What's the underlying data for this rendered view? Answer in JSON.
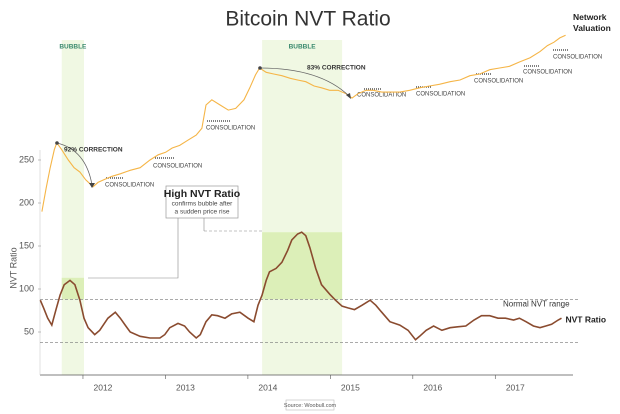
{
  "chart_data": {
    "type": "line",
    "title": "Bitcoin NVT Ratio",
    "y_label": "NVT Ratio",
    "xlim": [
      2011.2,
      2017.7
    ],
    "xticks": [
      2012,
      2013,
      2014,
      2015,
      2016,
      2017
    ],
    "ylim": [
      0,
      400
    ],
    "yticks": [
      50,
      100,
      150,
      200,
      250
    ],
    "normal_range": [
      38,
      88
    ],
    "normal_range_label": "Normal NVT range",
    "bubbles": [
      {
        "label": "BUBBLE",
        "x": [
          2011.5,
          2011.77
        ],
        "y": [
          88,
          113
        ]
      },
      {
        "label": "BUBBLE",
        "x": [
          2013.93,
          2014.9
        ],
        "y": [
          88,
          166
        ]
      }
    ],
    "corrections": [
      "92% CORRECTION",
      "83% CORRECTION"
    ],
    "consolidations": [
      "CONSOLIDATION",
      "CONSOLIDATION",
      "CONSOLIDATION",
      "CONSOLIDATION",
      "CONSOLIDATION",
      "CONSOLIDATION",
      "CONSOLIDATION",
      "CONSOLIDATION"
    ],
    "callout": {
      "title": "High NVT Ratio",
      "lines": [
        "confirms bubble after",
        "a sudden price rise"
      ]
    },
    "source": "Source: Woobull.com",
    "series": [
      {
        "name": "NVT Ratio",
        "color": "#8a4b2f",
        "x": [
          2011.24,
          2011.28,
          2011.33,
          2011.38,
          2011.43,
          2011.48,
          2011.53,
          2011.6,
          2011.66,
          2011.72,
          2011.77,
          2011.82,
          2011.9,
          2011.96,
          2012.06,
          2012.15,
          2012.21,
          2012.27,
          2012.33,
          2012.45,
          2012.57,
          2012.69,
          2012.75,
          2012.81,
          2012.91,
          2012.99,
          2013.05,
          2013.13,
          2013.18,
          2013.25,
          2013.32,
          2013.39,
          2013.48,
          2013.56,
          2013.66,
          2013.76,
          2013.83,
          2013.88,
          2013.93,
          2013.98,
          2014.02,
          2014.1,
          2014.17,
          2014.24,
          2014.29,
          2014.36,
          2014.41,
          2014.46,
          2014.51,
          2014.58,
          2014.65,
          2014.75,
          2014.82,
          2014.9,
          2014.97,
          2015.05,
          2015.14,
          2015.24,
          2015.31,
          2015.38,
          2015.48,
          2015.6,
          2015.7,
          2015.79,
          2015.84,
          2015.92,
          2016.01,
          2016.11,
          2016.21,
          2016.3,
          2016.4,
          2016.5,
          2016.59,
          2016.69,
          2016.79,
          2016.88,
          2016.98,
          2017.05,
          2017.13,
          2017.22,
          2017.3,
          2017.37,
          2017.44,
          2017.52,
          2017.56
        ],
        "values": [
          87,
          78,
          66,
          58,
          76,
          93,
          105,
          110,
          105,
          87,
          66,
          55,
          47,
          52,
          66,
          73,
          66,
          58,
          50,
          45,
          43,
          43,
          47,
          55,
          60,
          57,
          50,
          43,
          47,
          62,
          70,
          69,
          66,
          71,
          73,
          66,
          62,
          81,
          93,
          110,
          120,
          124,
          131,
          145,
          157,
          164,
          166,
          162,
          148,
          124,
          105,
          94,
          87,
          80,
          78,
          76,
          81,
          87,
          81,
          73,
          62,
          58,
          52,
          41,
          45,
          52,
          57,
          52,
          55,
          56,
          57,
          64,
          69,
          69,
          66,
          66,
          64,
          66,
          62,
          57,
          55,
          57,
          59,
          64,
          66
        ]
      },
      {
        "name": "Network Valuation",
        "color": "#f5b547",
        "x": [
          2011.26,
          2011.31,
          2011.36,
          2011.41,
          2011.44,
          2011.5,
          2011.58,
          2011.65,
          2011.72,
          2011.79,
          2011.88,
          2011.94,
          2012.01,
          2012.11,
          2012.21,
          2012.33,
          2012.45,
          2012.57,
          2012.67,
          2012.76,
          2012.84,
          2012.93,
          2013.03,
          2013.13,
          2013.2,
          2013.25,
          2013.32,
          2013.42,
          2013.52,
          2013.61,
          2013.71,
          2013.78,
          2013.85,
          2013.9,
          2013.98,
          2014.07,
          2014.17,
          2014.27,
          2014.36,
          2014.46,
          2014.56,
          2014.65,
          2014.75,
          2014.85,
          2014.95,
          2015.02,
          2015.09,
          2015.19,
          2015.28,
          2015.38,
          2015.48,
          2015.6,
          2015.72,
          2015.84,
          2015.96,
          2016.08,
          2016.21,
          2016.33,
          2016.45,
          2016.57,
          2016.69,
          2016.81,
          2016.93,
          2017.05,
          2017.18,
          2017.3,
          2017.39,
          2017.47,
          2017.54,
          2017.61
        ],
        "values": [
          190,
          217,
          241,
          262,
          270,
          262,
          250,
          241,
          236,
          227,
          219,
          224,
          227,
          231,
          234,
          238,
          241,
          250,
          256,
          259,
          264,
          267,
          273,
          279,
          287,
          314,
          320,
          314,
          308,
          310,
          320,
          334,
          349,
          357,
          352,
          350,
          348,
          345,
          343,
          341,
          336,
          334,
          331,
          331,
          327,
          322,
          327,
          331,
          331,
          329,
          329,
          329,
          331,
          334,
          336,
          338,
          341,
          343,
          348,
          350,
          355,
          357,
          359,
          364,
          369,
          376,
          383,
          387,
          392,
          395
        ]
      }
    ]
  }
}
